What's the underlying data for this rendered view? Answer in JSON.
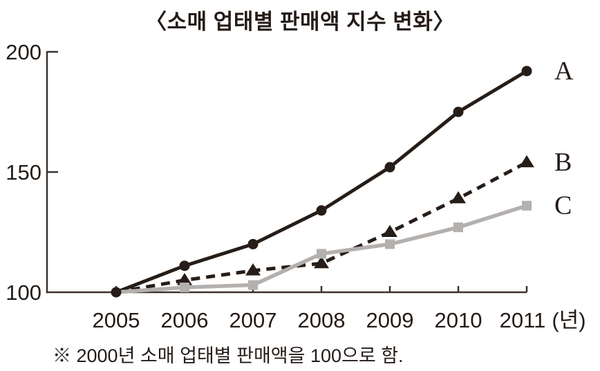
{
  "chart": {
    "title": "〈소매 업태별 판매액 지수 변화〉",
    "footnote": "※ 2000년 소매 업태별 판매액을 100으로 함.",
    "x_unit_label": "(년)"
  },
  "chart_data": {
    "type": "line",
    "title": "소매 업태별 판매액 지수 변화",
    "subtitle": "",
    "categories": [
      "2005",
      "2006",
      "2007",
      "2008",
      "2009",
      "2010",
      "2011"
    ],
    "xlabel": "(년)",
    "ylabel": "",
    "ylim": [
      100,
      200
    ],
    "yticks": [
      100,
      150,
      200
    ],
    "grid": false,
    "legend_position": "end-of-line-right",
    "colors": {
      "dark": "#261d18",
      "gray": "#b3b0ae",
      "axis": "#3b322d"
    },
    "series": [
      {
        "name": "A",
        "values": [
          100,
          111,
          120,
          134,
          152,
          175,
          192
        ],
        "line_style": "solid",
        "marker": "circle",
        "color": "#261d18",
        "skip_first_marker": false
      },
      {
        "name": "B",
        "values": [
          100,
          105,
          109,
          112,
          125,
          139,
          154
        ],
        "line_style": "dashed",
        "marker": "triangle",
        "color": "#261d18",
        "skip_first_marker": true
      },
      {
        "name": "C",
        "values": [
          100,
          102,
          103,
          116,
          120,
          127,
          136
        ],
        "line_style": "solid",
        "marker": "square",
        "color": "#b3b0ae",
        "skip_first_marker": true
      }
    ],
    "footnote": "※ 2000년 소매 업태별 판매액을 100으로 함."
  }
}
